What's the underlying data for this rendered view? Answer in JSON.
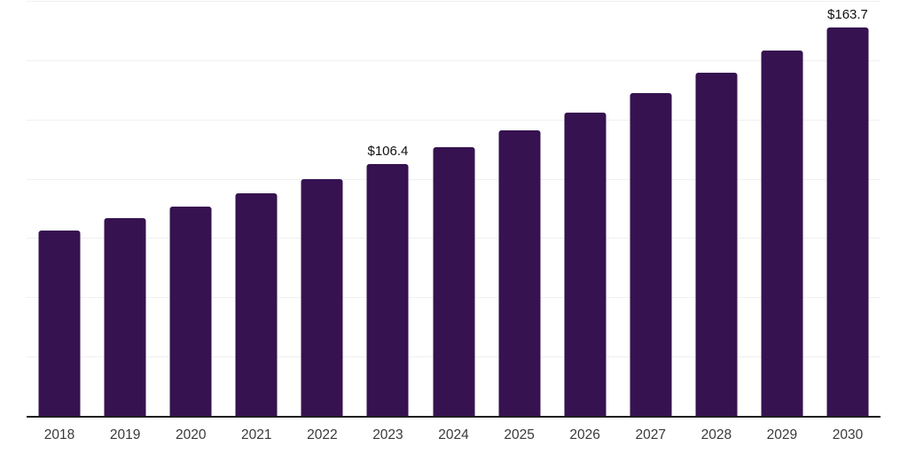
{
  "chart_data": {
    "type": "bar",
    "title": "",
    "xlabel": "",
    "ylabel": "",
    "categories": [
      "2018",
      "2019",
      "2020",
      "2021",
      "2022",
      "2023",
      "2024",
      "2025",
      "2026",
      "2027",
      "2028",
      "2029",
      "2030"
    ],
    "values": [
      78.2,
      83.3,
      88.4,
      94.0,
      100.0,
      106.4,
      113.2,
      120.3,
      128.0,
      136.1,
      144.7,
      153.9,
      163.7
    ],
    "value_prefix": "$",
    "annotations": [
      {
        "category": "2023",
        "label": "$106.4"
      },
      {
        "category": "2030",
        "label": "$163.7"
      }
    ],
    "ylim": [
      0,
      175
    ],
    "gridline_interval": 25,
    "grid": true,
    "legend_position": "none",
    "colors": {
      "bar": "#361250",
      "gridline": "#f0f0f0",
      "axis_line": "#1f1f1f",
      "tick_label": "#3a3a3a",
      "data_label": "#111111",
      "background": "#ffffff"
    }
  }
}
